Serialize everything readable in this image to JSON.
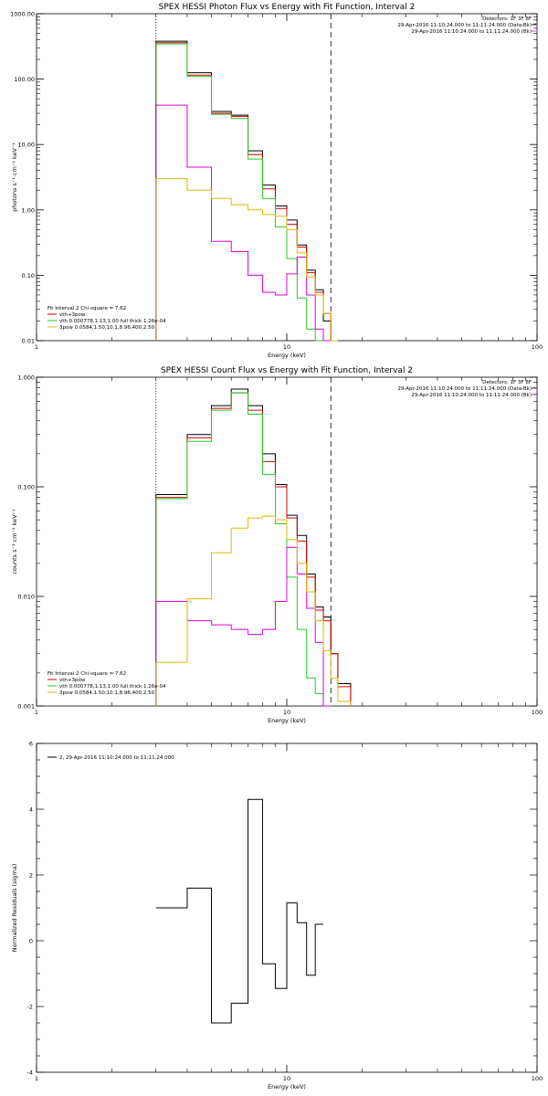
{
  "chart_data": [
    {
      "type": "line",
      "title": "SPEX HESSI Photon Flux vs Energy with Fit Function, Interval 2",
      "xlabel": "Energy (keV)",
      "ylabel": "photons s⁻¹ cm⁻² keV⁻¹",
      "xscale": "log",
      "yscale": "log",
      "xlim": [
        1,
        100
      ],
      "ylim": [
        0.01,
        1000
      ],
      "x_tick_labels": [
        "1",
        "10",
        "100"
      ],
      "y_tick_labels": [
        "0.01",
        "0.10",
        "1.00",
        "10.00",
        "100.00",
        "1000.00"
      ],
      "header": [
        "Detectors: 1F 3F 8F",
        "29-Apr-2016 11:10:24.000 to 11:11:24.000 (Data-Bk)",
        "29-Apr-2016 11:10:24.000 to 11:11:24.000 (Bk)"
      ],
      "fit_label": "Fit Interval 2   Chi-square = 7.62",
      "legend": [
        "vth+3pow",
        "vth 0.000778,1.13,1.00  full thick 1.26e-04",
        "3pow 0.0584,1.50,10.1,8.96,400,2.50"
      ],
      "bin_edges": [
        3,
        4,
        5,
        6,
        7,
        8,
        9,
        10,
        11,
        12,
        13,
        14,
        15,
        16,
        18
      ],
      "series": [
        {
          "name": "Data-Bk",
          "color": "#000000",
          "values": [
            380,
            125,
            32,
            28,
            8.0,
            2.4,
            1.15,
            0.7,
            0.29,
            0.12,
            0.06,
            0.02,
            0.01,
            null
          ]
        },
        {
          "name": "vth+3pow",
          "color": "#d00000",
          "values": [
            360,
            115,
            30,
            27,
            7.0,
            2.1,
            1.05,
            0.6,
            0.27,
            0.11,
            0.055,
            0.026,
            0.01,
            null
          ]
        },
        {
          "name": "vth 0.000778,1.13,1.00  full thick 1.26e-04",
          "color": "#22cc22",
          "values": [
            345,
            110,
            29,
            25,
            6.0,
            1.5,
            0.55,
            0.18,
            0.045,
            0.015,
            0.008,
            null,
            null,
            null
          ]
        },
        {
          "name": "Bk",
          "color": "#dd00dd",
          "values": [
            40,
            4.5,
            0.33,
            0.23,
            0.1,
            0.055,
            0.05,
            0.105,
            0.19,
            0.05,
            0.015,
            0.008,
            null,
            null
          ]
        },
        {
          "name": "3pow 0.0584,1.50,10.1,8.96,400,2.50",
          "color": "#ddbb00",
          "values": [
            3.0,
            2.0,
            1.5,
            1.2,
            1.0,
            0.85,
            0.8,
            0.5,
            0.22,
            0.095,
            0.05,
            0.026,
            0.01,
            null
          ]
        }
      ],
      "reference_lines": [
        {
          "x": 3,
          "style": "dotted"
        },
        {
          "x": 15,
          "style": "dashed"
        }
      ]
    },
    {
      "type": "line",
      "title": "SPEX HESSI Count Flux vs Energy with Fit Function, Interval 2",
      "xlabel": "Energy (keV)",
      "ylabel": "counts s⁻¹ cm⁻² keV⁻¹",
      "xscale": "log",
      "yscale": "log",
      "xlim": [
        1,
        100
      ],
      "ylim": [
        0.001,
        1
      ],
      "x_tick_labels": [
        "1",
        "10",
        "100"
      ],
      "y_tick_labels": [
        "0.001",
        "0.010",
        "0.100",
        "1.000"
      ],
      "header": [
        "Detectors: 1F 3F 8F",
        "29-Apr-2016 11:10:24.000 to 11:11:24.000 (Data-Bk)",
        "29-Apr-2016 11:10:24.000 to 11:11:24.000 (Bk)"
      ],
      "fit_label": "Fit Interval 2   Chi-square = 7.62",
      "legend": [
        "vth+3pow",
        "vth 0.000778,1.13,1.00  full thick 1.26e-04",
        "3pow 0.0584,1.50,10.1,8.96,400,2.50"
      ],
      "bin_edges": [
        3,
        4,
        5,
        6,
        7,
        8,
        9,
        10,
        11,
        12,
        13,
        14,
        15,
        16,
        18
      ],
      "series": [
        {
          "name": "Data-Bk",
          "color": "#000000",
          "values": [
            0.085,
            0.3,
            0.55,
            0.78,
            0.55,
            0.2,
            0.105,
            0.055,
            0.036,
            0.016,
            0.008,
            0.0065,
            0.003,
            0.0016
          ]
        },
        {
          "name": "vth+3pow",
          "color": "#d00000",
          "values": [
            0.08,
            0.28,
            0.52,
            0.72,
            0.5,
            0.17,
            0.1,
            0.052,
            0.032,
            0.015,
            0.0075,
            0.006,
            0.003,
            0.0015
          ]
        },
        {
          "name": "vth 0.000778,1.13,1.00  full thick 1.26e-04",
          "color": "#22cc22",
          "values": [
            0.078,
            0.26,
            0.5,
            0.72,
            0.46,
            0.13,
            0.046,
            0.015,
            0.005,
            0.0018,
            0.0013,
            0.0008,
            null,
            null
          ]
        },
        {
          "name": "Bk",
          "color": "#dd00dd",
          "values": [
            0.009,
            0.006,
            0.0055,
            0.005,
            0.0045,
            0.005,
            0.009,
            0.028,
            0.016,
            0.0078,
            0.0038,
            0.0009,
            null,
            null
          ]
        },
        {
          "name": "3pow 0.0584,1.50,10.1,8.96,400,2.50",
          "color": "#ddbb00",
          "values": [
            0.0025,
            0.0095,
            0.025,
            0.042,
            0.052,
            0.054,
            0.05,
            0.033,
            0.02,
            0.011,
            0.006,
            0.0032,
            0.0018,
            0.0011
          ]
        }
      ],
      "reference_lines": [
        {
          "x": 3,
          "style": "dotted"
        },
        {
          "x": 15,
          "style": "dashed"
        }
      ]
    },
    {
      "type": "line",
      "title": "",
      "xlabel": "Energy (keV)",
      "ylabel": "Normalized Residuals (sigma)",
      "xscale": "log",
      "yscale": "linear",
      "xlim": [
        1,
        100
      ],
      "ylim": [
        -4,
        6
      ],
      "x_tick_labels": [
        "1",
        "10",
        "100"
      ],
      "y_tick_labels": [
        "-4",
        "-2",
        "0",
        "2",
        "4",
        "6"
      ],
      "legend": [
        "2, 29-Apr-2016 11:10:24.000 to 11:11:24.000"
      ],
      "bin_edges": [
        3,
        4,
        5,
        6,
        7,
        8,
        9,
        10,
        11,
        12,
        13,
        14
      ],
      "series": [
        {
          "name": "2, 29-Apr-2016 11:10:24.000 to 11:11:24.000",
          "color": "#000000",
          "values": [
            1.0,
            1.6,
            -2.5,
            -1.9,
            4.3,
            -0.7,
            -1.45,
            1.15,
            0.55,
            -1.05,
            0.5
          ]
        }
      ]
    }
  ]
}
